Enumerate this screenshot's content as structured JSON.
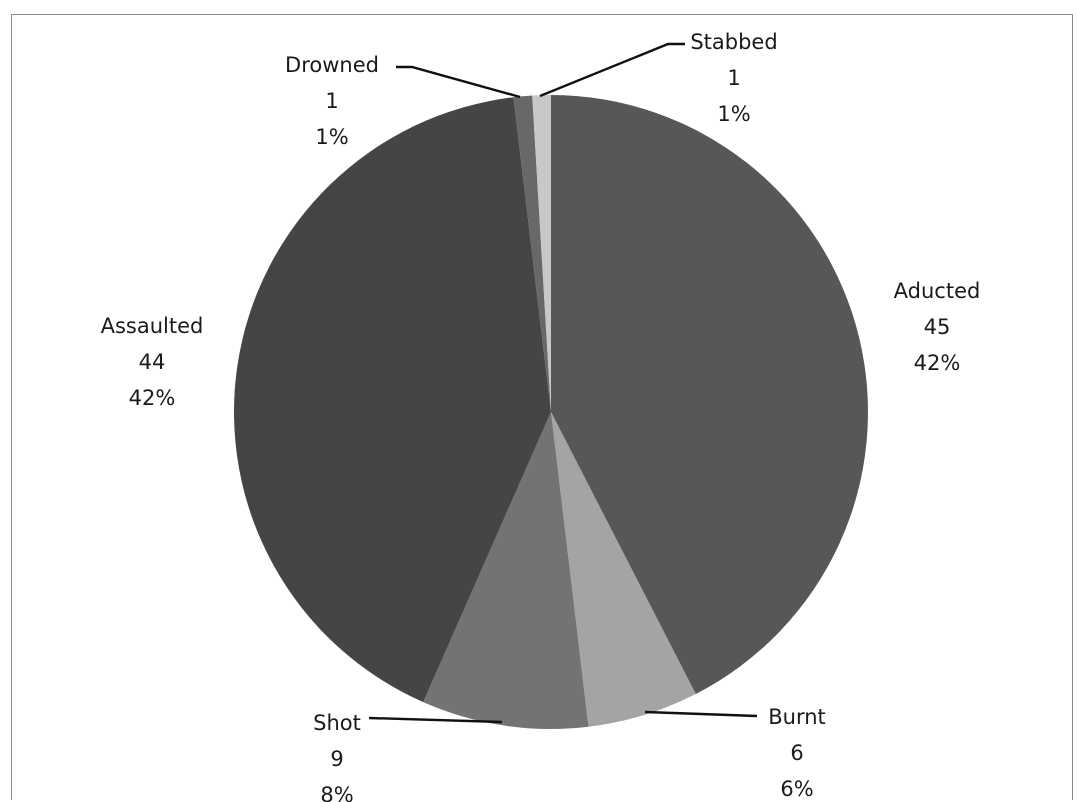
{
  "chart_data": {
    "type": "pie",
    "title": "",
    "legend": "none",
    "start_angle_deg": 0,
    "direction": "clockwise",
    "slices": [
      {
        "label": "Aducted",
        "value": 45,
        "percent": "42%",
        "color": "#575757"
      },
      {
        "label": "Burnt",
        "value": 6,
        "percent": "6%",
        "color": "#a4a4a4"
      },
      {
        "label": "Shot",
        "value": 9,
        "percent": "8%",
        "color": "#737373"
      },
      {
        "label": "Assaulted",
        "value": 44,
        "percent": "42%",
        "color": "#454545"
      },
      {
        "label": "Drowned",
        "value": 1,
        "percent": "1%",
        "color": "#686868"
      },
      {
        "label": "Stabbed",
        "value": 1,
        "percent": "1%",
        "color": "#c8c8c8"
      }
    ]
  }
}
